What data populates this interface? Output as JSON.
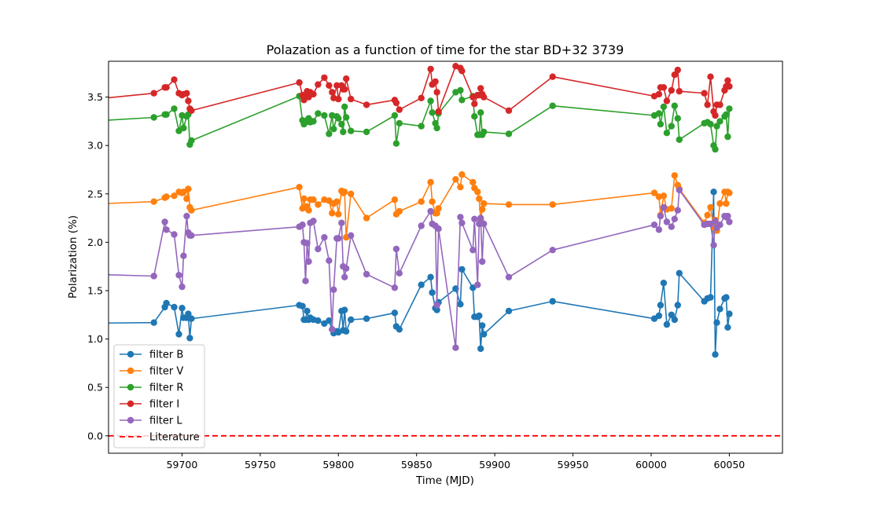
{
  "chart_data": {
    "type": "line",
    "title": "Polazation as a function of time for the star BD+32 3739",
    "xlabel": "Time (MJD)",
    "ylabel": "Polarization (%)",
    "xlim": [
      59653,
      60084
    ],
    "ylim": [
      -0.18,
      3.87
    ],
    "xticks": [
      59700,
      59750,
      59800,
      59850,
      59900,
      59950,
      60000,
      60050
    ],
    "yticks": [
      0.0,
      0.5,
      1.0,
      1.5,
      2.0,
      2.5,
      3.0,
      3.5
    ],
    "ytick_labels": [
      "0.0",
      "0.5",
      "1.0",
      "1.5",
      "2.0",
      "2.5",
      "3.0",
      "3.5"
    ],
    "grid": false,
    "legend_placement": "lower-left",
    "series": [
      {
        "name": "filter B",
        "color": "#1f77b4",
        "x": [
          59620,
          59682,
          59689,
          59690,
          59695,
          59698,
          59700,
          59701,
          59703,
          59704,
          59705,
          59706,
          59775,
          59777,
          59778,
          59779,
          59780,
          59781,
          59782,
          59784,
          59787,
          59791,
          59794,
          59796,
          59797,
          59799,
          59800,
          59802,
          59803,
          59804,
          59805,
          59808,
          59818,
          59836,
          59837,
          59839,
          59853,
          59859,
          59860,
          59862,
          59863,
          59864,
          59875,
          59878,
          59879,
          59886,
          59887,
          59889,
          59890,
          59891,
          59892,
          59893,
          59909,
          59937,
          60002,
          60005,
          60006,
          60008,
          60010,
          60013,
          60015,
          60017,
          60018,
          60034,
          60036,
          60038,
          60040,
          60041,
          60042,
          60044,
          60047,
          60048,
          60049,
          60050
        ],
        "y": [
          1.16,
          1.17,
          1.33,
          1.37,
          1.33,
          1.05,
          1.32,
          1.22,
          1.22,
          1.26,
          1.01,
          1.21,
          1.35,
          1.34,
          1.2,
          1.2,
          1.29,
          1.2,
          1.22,
          1.2,
          1.19,
          1.16,
          1.19,
          1.1,
          1.06,
          1.08,
          1.07,
          1.29,
          1.09,
          1.3,
          1.08,
          1.2,
          1.21,
          1.27,
          1.13,
          1.1,
          1.56,
          1.64,
          1.48,
          1.32,
          1.3,
          1.38,
          1.52,
          1.36,
          1.72,
          1.53,
          1.23,
          1.23,
          1.24,
          0.9,
          1.14,
          1.05,
          1.29,
          1.39,
          1.21,
          1.24,
          1.35,
          1.58,
          1.15,
          1.25,
          1.2,
          1.35,
          1.68,
          1.39,
          1.42,
          1.43,
          2.52,
          0.84,
          1.17,
          1.31,
          1.42,
          1.43,
          1.12,
          1.26
        ]
      },
      {
        "name": "filter V",
        "color": "#ff7f0e",
        "x": [
          59620,
          59682,
          59689,
          59690,
          59695,
          59698,
          59700,
          59701,
          59703,
          59704,
          59705,
          59706,
          59775,
          59777,
          59778,
          59779,
          59780,
          59781,
          59782,
          59784,
          59787,
          59791,
          59794,
          59796,
          59797,
          59799,
          59800,
          59802,
          59803,
          59804,
          59805,
          59808,
          59818,
          59836,
          59837,
          59839,
          59853,
          59859,
          59860,
          59862,
          59863,
          59864,
          59875,
          59878,
          59879,
          59886,
          59887,
          59889,
          59890,
          59891,
          59892,
          59893,
          59909,
          59937,
          60002,
          60005,
          60006,
          60008,
          60010,
          60013,
          60015,
          60017,
          60018,
          60034,
          60036,
          60038,
          60040,
          60041,
          60042,
          60044,
          60047,
          60048,
          60049,
          60050
        ],
        "y": [
          2.38,
          2.42,
          2.46,
          2.47,
          2.48,
          2.52,
          2.51,
          2.52,
          2.45,
          2.55,
          2.36,
          2.33,
          2.57,
          2.35,
          2.45,
          2.36,
          2.37,
          2.33,
          2.44,
          2.44,
          2.39,
          2.44,
          2.43,
          2.3,
          2.4,
          2.42,
          2.29,
          2.53,
          2.51,
          2.52,
          2.05,
          2.5,
          2.25,
          2.44,
          2.29,
          2.32,
          2.42,
          2.62,
          2.42,
          2.3,
          2.3,
          2.35,
          2.65,
          2.57,
          2.7,
          2.62,
          2.56,
          2.52,
          2.45,
          2.23,
          2.34,
          2.4,
          2.39,
          2.39,
          2.51,
          2.47,
          2.28,
          2.48,
          2.34,
          2.35,
          2.69,
          2.59,
          2.55,
          2.2,
          2.28,
          2.36,
          2.15,
          2.23,
          2.12,
          2.4,
          2.52,
          2.4,
          2.52,
          2.51
        ]
      },
      {
        "name": "filter R",
        "color": "#2ca02c",
        "x": [
          59620,
          59682,
          59689,
          59690,
          59695,
          59698,
          59700,
          59701,
          59703,
          59704,
          59705,
          59706,
          59775,
          59777,
          59778,
          59779,
          59780,
          59781,
          59782,
          59784,
          59787,
          59791,
          59794,
          59796,
          59797,
          59799,
          59800,
          59802,
          59803,
          59804,
          59805,
          59808,
          59818,
          59836,
          59837,
          59839,
          59853,
          59859,
          59860,
          59862,
          59863,
          59864,
          59875,
          59878,
          59879,
          59886,
          59887,
          59889,
          59890,
          59891,
          59892,
          59893,
          59909,
          59937,
          60002,
          60005,
          60006,
          60008,
          60010,
          60013,
          60015,
          60017,
          60018,
          60034,
          60036,
          60038,
          60040,
          60041,
          60042,
          60044,
          60047,
          60048,
          60049,
          60050
        ],
        "y": [
          3.23,
          3.29,
          3.32,
          3.32,
          3.38,
          3.15,
          3.31,
          3.18,
          3.3,
          3.32,
          3.01,
          3.05,
          3.51,
          3.26,
          3.22,
          3.24,
          3.26,
          3.28,
          3.24,
          3.25,
          3.33,
          3.31,
          3.12,
          3.31,
          3.17,
          3.3,
          3.28,
          3.22,
          3.14,
          3.4,
          3.29,
          3.15,
          3.14,
          3.31,
          3.02,
          3.23,
          3.2,
          3.46,
          3.34,
          3.23,
          3.18,
          3.33,
          3.55,
          3.57,
          3.47,
          3.51,
          3.3,
          3.11,
          3.11,
          3.34,
          3.11,
          3.14,
          3.12,
          3.41,
          3.31,
          3.33,
          3.22,
          3.4,
          3.13,
          3.2,
          3.41,
          3.28,
          3.06,
          3.23,
          3.24,
          3.22,
          3.0,
          2.96,
          3.2,
          3.25,
          3.3,
          3.32,
          3.09,
          3.38
        ]
      },
      {
        "name": "filter I",
        "color": "#d62728",
        "x": [
          59620,
          59682,
          59689,
          59690,
          59695,
          59698,
          59700,
          59701,
          59703,
          59704,
          59705,
          59706,
          59775,
          59777,
          59778,
          59779,
          59780,
          59781,
          59782,
          59784,
          59787,
          59791,
          59794,
          59796,
          59797,
          59799,
          59800,
          59802,
          59803,
          59804,
          59805,
          59808,
          59818,
          59836,
          59837,
          59839,
          59853,
          59859,
          59860,
          59862,
          59863,
          59864,
          59875,
          59878,
          59879,
          59886,
          59887,
          59889,
          59890,
          59891,
          59892,
          59893,
          59909,
          59937,
          60002,
          60005,
          60006,
          60008,
          60010,
          60013,
          60015,
          60017,
          60018,
          60034,
          60036,
          60038,
          60040,
          60041,
          60042,
          60044,
          60047,
          60048,
          60049,
          60050
        ],
        "y": [
          3.44,
          3.54,
          3.6,
          3.6,
          3.68,
          3.54,
          3.52,
          3.53,
          3.54,
          3.46,
          3.38,
          3.36,
          3.65,
          3.52,
          3.47,
          3.52,
          3.56,
          3.5,
          3.55,
          3.53,
          3.63,
          3.7,
          3.62,
          3.55,
          3.49,
          3.62,
          3.48,
          3.62,
          3.58,
          3.58,
          3.69,
          3.48,
          3.42,
          3.47,
          3.44,
          3.37,
          3.49,
          3.79,
          3.63,
          3.66,
          3.55,
          3.35,
          3.82,
          3.8,
          3.77,
          3.5,
          3.43,
          3.52,
          3.52,
          3.59,
          3.53,
          3.5,
          3.36,
          3.71,
          3.51,
          3.53,
          3.6,
          3.6,
          3.46,
          3.57,
          3.73,
          3.78,
          3.56,
          3.54,
          3.42,
          3.71,
          3.35,
          3.31,
          3.42,
          3.42,
          3.57,
          3.61,
          3.67,
          3.61
        ]
      },
      {
        "name": "filter L",
        "color": "#9467bd",
        "x": [
          59620,
          59682,
          59689,
          59690,
          59695,
          59698,
          59700,
          59701,
          59703,
          59704,
          59705,
          59706,
          59775,
          59777,
          59778,
          59779,
          59780,
          59781,
          59782,
          59784,
          59787,
          59791,
          59794,
          59796,
          59797,
          59799,
          59800,
          59802,
          59803,
          59804,
          59805,
          59808,
          59818,
          59836,
          59837,
          59839,
          59853,
          59859,
          59860,
          59862,
          59863,
          59864,
          59875,
          59878,
          59879,
          59886,
          59887,
          59889,
          59890,
          59891,
          59892,
          59893,
          59909,
          59937,
          60002,
          60005,
          60006,
          60008,
          60010,
          60013,
          60015,
          60017,
          60018,
          60034,
          60036,
          60038,
          60040,
          60041,
          60042,
          60044,
          60047,
          60048,
          60049,
          60050
        ],
        "y": [
          1.68,
          1.65,
          2.21,
          2.13,
          2.08,
          1.66,
          1.54,
          1.86,
          2.27,
          2.1,
          2.07,
          2.07,
          2.16,
          2.18,
          2.0,
          1.6,
          1.99,
          1.8,
          2.2,
          2.22,
          1.93,
          2.05,
          1.81,
          1.1,
          1.51,
          2.04,
          2.04,
          2.2,
          1.75,
          1.64,
          1.73,
          2.07,
          1.67,
          1.53,
          1.93,
          1.68,
          2.17,
          2.32,
          2.19,
          2.17,
          1.35,
          2.14,
          0.91,
          2.26,
          2.2,
          1.92,
          2.24,
          1.56,
          2.19,
          2.25,
          1.8,
          2.19,
          1.64,
          1.92,
          2.18,
          2.13,
          2.27,
          2.36,
          2.21,
          2.16,
          2.24,
          2.33,
          2.54,
          2.18,
          2.19,
          2.19,
          1.97,
          2.22,
          2.15,
          2.18,
          2.27,
          2.26,
          2.27,
          2.21
        ]
      },
      {
        "name": "Literature",
        "color": "#ff0000",
        "style": "dashed",
        "y_constant": 0.0
      }
    ]
  }
}
